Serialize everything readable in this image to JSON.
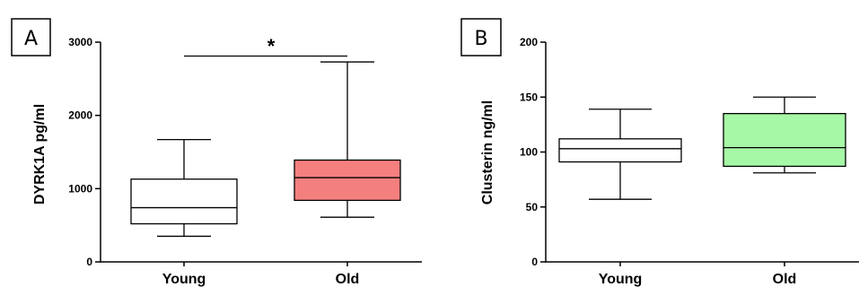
{
  "chart_data": [
    {
      "type": "box",
      "panel_label": "A",
      "ylabel": "DYRK1A pg/ml",
      "ylim": [
        0,
        3000
      ],
      "yticks": [
        "0",
        "1000",
        "2000",
        "3000"
      ],
      "categories": [
        "Young",
        "Old"
      ],
      "boxes": [
        {
          "category": "Young",
          "min": 350,
          "q1": 520,
          "median": 740,
          "q3": 1130,
          "max": 1670,
          "fill": "#ffffff"
        },
        {
          "category": "Old",
          "min": 610,
          "q1": 840,
          "median": 1150,
          "q3": 1390,
          "max": 2730,
          "fill": "#f47f7f"
        }
      ],
      "annotation": {
        "text": "*",
        "bracket_value": 2810,
        "between": [
          "Young",
          "Old"
        ]
      },
      "grid": false
    },
    {
      "type": "box",
      "panel_label": "B",
      "ylabel": "Clusterin ng/ml",
      "ylim": [
        0,
        200
      ],
      "yticks": [
        "0",
        "50",
        "100",
        "150",
        "200"
      ],
      "categories": [
        "Young",
        "Old"
      ],
      "boxes": [
        {
          "category": "Young",
          "min": 57,
          "q1": 91,
          "median": 103,
          "q3": 112,
          "max": 139,
          "fill": "#ffffff"
        },
        {
          "category": "Old",
          "min": 81,
          "q1": 87,
          "median": 104,
          "q3": 135,
          "max": 150,
          "fill": "#a6f7a6"
        }
      ],
      "grid": false
    }
  ]
}
